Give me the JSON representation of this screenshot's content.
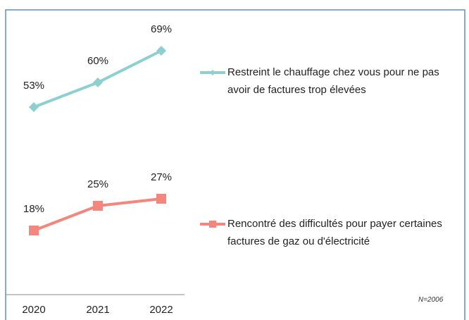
{
  "chart_data": {
    "type": "line",
    "categories": [
      "2020",
      "2021",
      "2022"
    ],
    "series": [
      {
        "name": "Restreint le chauffage chez vous pour ne pas avoir de factures trop élevées",
        "color": "#8ecfd0",
        "marker": "diamond",
        "values": [
          53,
          60,
          69
        ],
        "value_labels": [
          "53%",
          "60%",
          "69%"
        ]
      },
      {
        "name": "Rencontré des difficultés pour payer certaines factures de gaz ou d'électricité",
        "color": "#f4867d",
        "marker": "square",
        "values": [
          18,
          25,
          27
        ],
        "value_labels": [
          "18%",
          "25%",
          "27%"
        ]
      }
    ],
    "annotation": "N=2006"
  }
}
